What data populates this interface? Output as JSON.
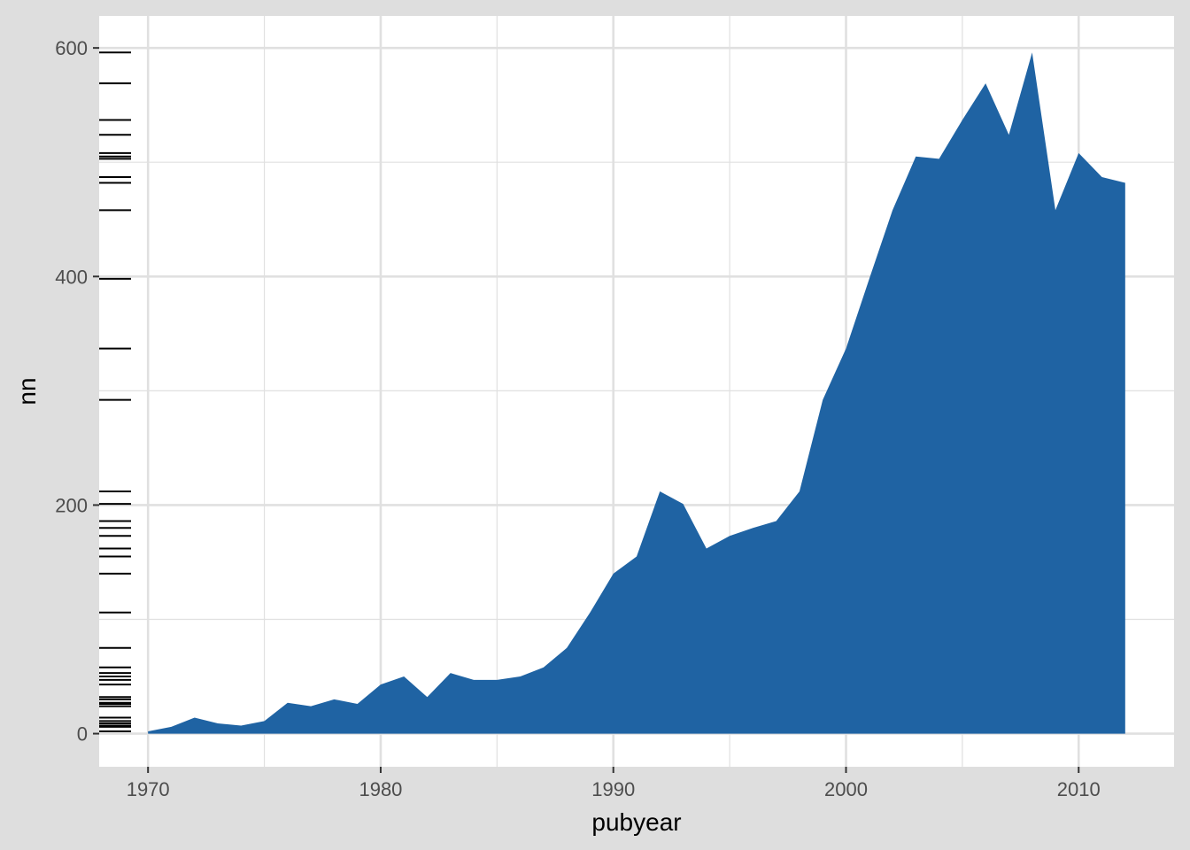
{
  "chart_data": {
    "type": "area",
    "title": "",
    "xlabel": "pubyear",
    "ylabel": "nn",
    "x": [
      1970,
      1971,
      1972,
      1973,
      1974,
      1975,
      1976,
      1977,
      1978,
      1979,
      1980,
      1981,
      1982,
      1983,
      1984,
      1985,
      1986,
      1987,
      1988,
      1989,
      1990,
      1991,
      1992,
      1993,
      1994,
      1995,
      1996,
      1997,
      1998,
      1999,
      2000,
      2001,
      2002,
      2003,
      2004,
      2005,
      2006,
      2007,
      2008,
      2009,
      2010,
      2011,
      2012
    ],
    "series": [
      {
        "values": [
          2,
          6,
          14,
          9,
          7,
          11,
          27,
          24,
          30,
          26,
          43,
          50,
          32,
          53,
          47,
          47,
          50,
          58,
          75,
          106,
          140,
          155,
          212,
          201,
          162,
          173,
          180,
          186,
          212,
          292,
          337,
          398,
          458,
          505,
          503,
          537,
          569,
          524,
          596,
          458,
          508,
          487,
          482
        ]
      }
    ],
    "xlim": [
      1967.9,
      2014.1
    ],
    "ylim": [
      -29,
      628
    ],
    "x_ticks": [
      1970,
      1980,
      1990,
      2000,
      2010
    ],
    "y_ticks": [
      0,
      200,
      400,
      600
    ],
    "x_tick_labels": [
      "1970",
      "1980",
      "1990",
      "2000",
      "2010"
    ],
    "y_tick_labels": [
      "0",
      "200",
      "400",
      "600"
    ],
    "rug_y": [
      2,
      6,
      7,
      9,
      11,
      14,
      24,
      26,
      27,
      30,
      32,
      43,
      47,
      50,
      53,
      58,
      75,
      106,
      140,
      155,
      162,
      173,
      180,
      186,
      201,
      212,
      292,
      337,
      398,
      458,
      482,
      487,
      503,
      505,
      508,
      524,
      537,
      569,
      596
    ],
    "grid": true,
    "legend": "none",
    "colors": {
      "fill": "#1f63a3",
      "background": "#dedede",
      "panel": "#ffffff",
      "grid": "#e0e0e0",
      "rug": "#000000",
      "tick_text": "#4d4d4d",
      "axis_title": "#000000"
    }
  }
}
